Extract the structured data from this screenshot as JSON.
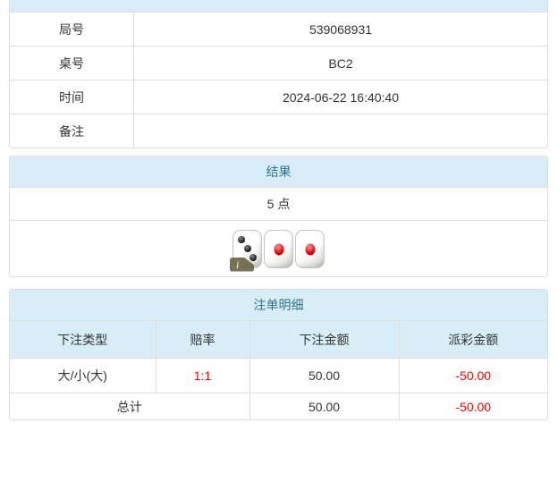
{
  "colors": {
    "header_bg": "#d9edf7",
    "header_text": "#31708f",
    "border": "#dddddd",
    "body_text": "#333333",
    "negative_red": "#ff0000"
  },
  "info_table": {
    "rows": [
      {
        "label": "局号",
        "value": "539068931"
      },
      {
        "label": "桌号",
        "value": "BC2"
      },
      {
        "label": "时间",
        "value": "2024-06-22 16:40:40"
      },
      {
        "label": "备注",
        "value": ""
      }
    ]
  },
  "result": {
    "title": "结果",
    "points": "5 点",
    "dice": [
      {
        "value": 3,
        "color": "black"
      },
      {
        "value": 1,
        "color": "red"
      },
      {
        "value": 1,
        "color": "red"
      }
    ],
    "info_badge": "i"
  },
  "bets": {
    "title": "注单明细",
    "columns": [
      "下注类型",
      "赔率",
      "下注金额",
      "派彩金额"
    ],
    "rows": [
      {
        "type": "大/小(大)",
        "odds": "1:1",
        "amount": "50.00",
        "payout": "-50.00"
      }
    ],
    "total": {
      "label": "总计",
      "amount": "50.00",
      "payout": "-50.00"
    }
  }
}
